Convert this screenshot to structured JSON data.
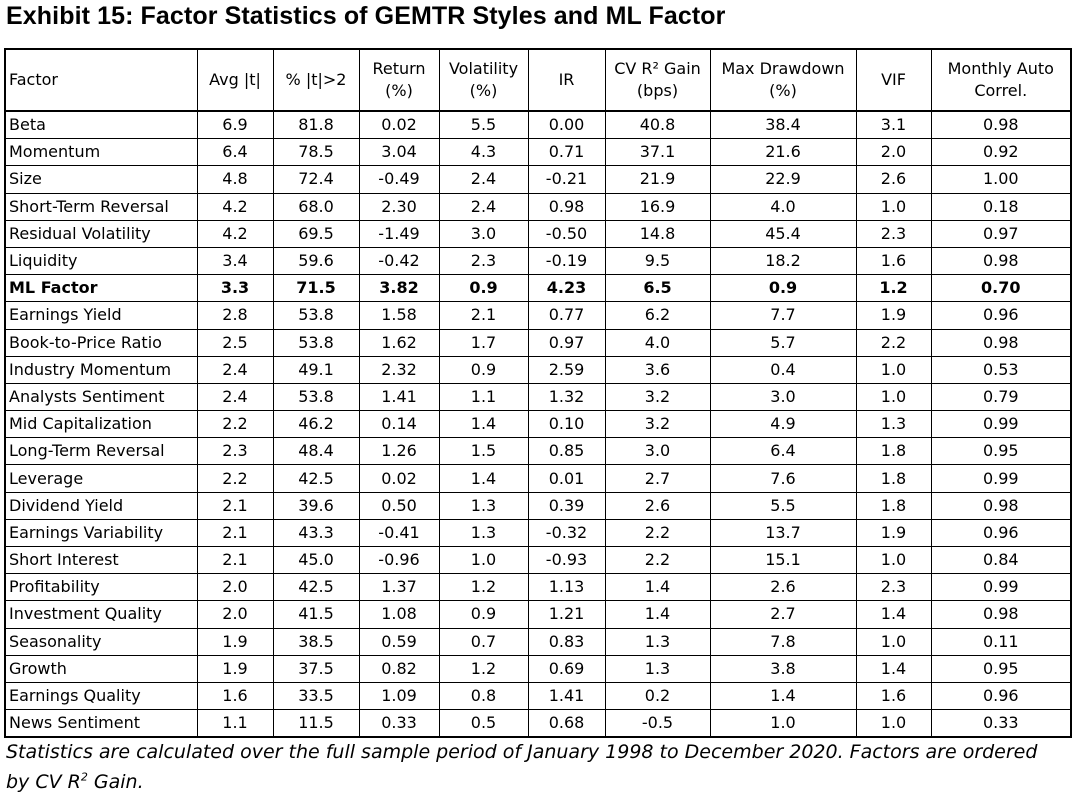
{
  "title": "Exhibit 15: Factor Statistics of GEMTR Styles and ML Factor",
  "columns": [
    {
      "line1": "Factor",
      "line2": ""
    },
    {
      "line1": "Avg |t|",
      "line2": ""
    },
    {
      "line1": "% |t|>2",
      "line2": ""
    },
    {
      "line1": "Return",
      "line2": "(%)"
    },
    {
      "line1": "Volatility",
      "line2": "(%)"
    },
    {
      "line1": "IR",
      "line2": ""
    },
    {
      "line1": "CV R² Gain",
      "line2": "(bps)"
    },
    {
      "line1": "Max Drawdown",
      "line2": "(%)"
    },
    {
      "line1": "VIF",
      "line2": ""
    },
    {
      "line1": "Monthly Auto",
      "line2": "Correl."
    }
  ],
  "rows": [
    {
      "factor": "Beta",
      "avg_t": "6.9",
      "pct_t": "81.8",
      "return": "0.02",
      "volatility": "5.5",
      "ir": "0.00",
      "cv_r2_gain": "40.8",
      "max_drawdown": "38.4",
      "vif": "3.1",
      "auto_correl": "0.98"
    },
    {
      "factor": "Momentum",
      "avg_t": "6.4",
      "pct_t": "78.5",
      "return": "3.04",
      "volatility": "4.3",
      "ir": "0.71",
      "cv_r2_gain": "37.1",
      "max_drawdown": "21.6",
      "vif": "2.0",
      "auto_correl": "0.92"
    },
    {
      "factor": "Size",
      "avg_t": "4.8",
      "pct_t": "72.4",
      "return": "-0.49",
      "volatility": "2.4",
      "ir": "-0.21",
      "cv_r2_gain": "21.9",
      "max_drawdown": "22.9",
      "vif": "2.6",
      "auto_correl": "1.00"
    },
    {
      "factor": "Short-Term Reversal",
      "avg_t": "4.2",
      "pct_t": "68.0",
      "return": "2.30",
      "volatility": "2.4",
      "ir": "0.98",
      "cv_r2_gain": "16.9",
      "max_drawdown": "4.0",
      "vif": "1.0",
      "auto_correl": "0.18"
    },
    {
      "factor": "Residual Volatility",
      "avg_t": "4.2",
      "pct_t": "69.5",
      "return": "-1.49",
      "volatility": "3.0",
      "ir": "-0.50",
      "cv_r2_gain": "14.8",
      "max_drawdown": "45.4",
      "vif": "2.3",
      "auto_correl": "0.97"
    },
    {
      "factor": "Liquidity",
      "avg_t": "3.4",
      "pct_t": "59.6",
      "return": "-0.42",
      "volatility": "2.3",
      "ir": "-0.19",
      "cv_r2_gain": "9.5",
      "max_drawdown": "18.2",
      "vif": "1.6",
      "auto_correl": "0.98"
    },
    {
      "factor": "ML Factor",
      "avg_t": "3.3",
      "pct_t": "71.5",
      "return": "3.82",
      "volatility": "0.9",
      "ir": "4.23",
      "cv_r2_gain": "6.5",
      "max_drawdown": "0.9",
      "vif": "1.2",
      "auto_correl": "0.70",
      "bold": true
    },
    {
      "factor": "Earnings Yield",
      "avg_t": "2.8",
      "pct_t": "53.8",
      "return": "1.58",
      "volatility": "2.1",
      "ir": "0.77",
      "cv_r2_gain": "6.2",
      "max_drawdown": "7.7",
      "vif": "1.9",
      "auto_correl": "0.96"
    },
    {
      "factor": "Book-to-Price Ratio",
      "avg_t": "2.5",
      "pct_t": "53.8",
      "return": "1.62",
      "volatility": "1.7",
      "ir": "0.97",
      "cv_r2_gain": "4.0",
      "max_drawdown": "5.7",
      "vif": "2.2",
      "auto_correl": "0.98"
    },
    {
      "factor": "Industry Momentum",
      "avg_t": "2.4",
      "pct_t": "49.1",
      "return": "2.32",
      "volatility": "0.9",
      "ir": "2.59",
      "cv_r2_gain": "3.6",
      "max_drawdown": "0.4",
      "vif": "1.0",
      "auto_correl": "0.53"
    },
    {
      "factor": "Analysts Sentiment",
      "avg_t": "2.4",
      "pct_t": "53.8",
      "return": "1.41",
      "volatility": "1.1",
      "ir": "1.32",
      "cv_r2_gain": "3.2",
      "max_drawdown": "3.0",
      "vif": "1.0",
      "auto_correl": "0.79"
    },
    {
      "factor": "Mid Capitalization",
      "avg_t": "2.2",
      "pct_t": "46.2",
      "return": "0.14",
      "volatility": "1.4",
      "ir": "0.10",
      "cv_r2_gain": "3.2",
      "max_drawdown": "4.9",
      "vif": "1.3",
      "auto_correl": "0.99"
    },
    {
      "factor": "Long-Term Reversal",
      "avg_t": "2.3",
      "pct_t": "48.4",
      "return": "1.26",
      "volatility": "1.5",
      "ir": "0.85",
      "cv_r2_gain": "3.0",
      "max_drawdown": "6.4",
      "vif": "1.8",
      "auto_correl": "0.95"
    },
    {
      "factor": "Leverage",
      "avg_t": "2.2",
      "pct_t": "42.5",
      "return": "0.02",
      "volatility": "1.4",
      "ir": "0.01",
      "cv_r2_gain": "2.7",
      "max_drawdown": "7.6",
      "vif": "1.8",
      "auto_correl": "0.99"
    },
    {
      "factor": "Dividend Yield",
      "avg_t": "2.1",
      "pct_t": "39.6",
      "return": "0.50",
      "volatility": "1.3",
      "ir": "0.39",
      "cv_r2_gain": "2.6",
      "max_drawdown": "5.5",
      "vif": "1.8",
      "auto_correl": "0.98"
    },
    {
      "factor": "Earnings Variability",
      "avg_t": "2.1",
      "pct_t": "43.3",
      "return": "-0.41",
      "volatility": "1.3",
      "ir": "-0.32",
      "cv_r2_gain": "2.2",
      "max_drawdown": "13.7",
      "vif": "1.9",
      "auto_correl": "0.96"
    },
    {
      "factor": "Short Interest",
      "avg_t": "2.1",
      "pct_t": "45.0",
      "return": "-0.96",
      "volatility": "1.0",
      "ir": "-0.93",
      "cv_r2_gain": "2.2",
      "max_drawdown": "15.1",
      "vif": "1.0",
      "auto_correl": "0.84"
    },
    {
      "factor": "Profitability",
      "avg_t": "2.0",
      "pct_t": "42.5",
      "return": "1.37",
      "volatility": "1.2",
      "ir": "1.13",
      "cv_r2_gain": "1.4",
      "max_drawdown": "2.6",
      "vif": "2.3",
      "auto_correl": "0.99"
    },
    {
      "factor": "Investment Quality",
      "avg_t": "2.0",
      "pct_t": "41.5",
      "return": "1.08",
      "volatility": "0.9",
      "ir": "1.21",
      "cv_r2_gain": "1.4",
      "max_drawdown": "2.7",
      "vif": "1.4",
      "auto_correl": "0.98"
    },
    {
      "factor": "Seasonality",
      "avg_t": "1.9",
      "pct_t": "38.5",
      "return": "0.59",
      "volatility": "0.7",
      "ir": "0.83",
      "cv_r2_gain": "1.3",
      "max_drawdown": "7.8",
      "vif": "1.0",
      "auto_correl": "0.11"
    },
    {
      "factor": "Growth",
      "avg_t": "1.9",
      "pct_t": "37.5",
      "return": "0.82",
      "volatility": "1.2",
      "ir": "0.69",
      "cv_r2_gain": "1.3",
      "max_drawdown": "3.8",
      "vif": "1.4",
      "auto_correl": "0.95"
    },
    {
      "factor": "Earnings Quality",
      "avg_t": "1.6",
      "pct_t": "33.5",
      "return": "1.09",
      "volatility": "0.8",
      "ir": "1.41",
      "cv_r2_gain": "0.2",
      "max_drawdown": "1.4",
      "vif": "1.6",
      "auto_correl": "0.96"
    },
    {
      "factor": "News Sentiment",
      "avg_t": "1.1",
      "pct_t": "11.5",
      "return": "0.33",
      "volatility": "0.5",
      "ir": "0.68",
      "cv_r2_gain": "-0.5",
      "max_drawdown": "1.0",
      "vif": "1.0",
      "auto_correl": "0.33"
    }
  ],
  "caption": {
    "line1": "Statistics are calculated over the full sample period of January 1998 to December 2020. Factors are ordered",
    "line2_prefix": "by CV R",
    "line2_sup": "2",
    "line2_suffix": " Gain."
  }
}
